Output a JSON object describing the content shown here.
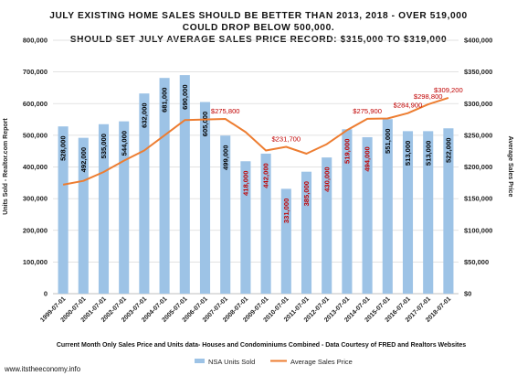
{
  "chart_data": {
    "type": "bar",
    "title_lines": [
      "JULY EXISTING HOME SALES SHOULD BE BETTER THAN 2013, 2018 - OVER 519,000",
      "COULD DROP BELOW 500,000.",
      "SHOULD SET JULY AVERAGE SALES PRICE RECORD: $315,000 TO $319,000"
    ],
    "categories": [
      "1999-07-01",
      "2000-07-01",
      "2001-07-01",
      "2002-07-01",
      "2003-07-01",
      "2004-07-01",
      "2005-07-01",
      "2006-07-01",
      "2007-07-01",
      "2008-07-01",
      "2009-07-01",
      "2010-07-01",
      "2011-07-01",
      "2012-07-01",
      "2013-07-01",
      "2014-07-01",
      "2015-07-01",
      "2016-07-01",
      "2017-07-01",
      "2018-07-01"
    ],
    "series": [
      {
        "name": "NSA Units Sold",
        "axis": "left",
        "color": "#9dc3e6",
        "values": [
          528000,
          492000,
          535000,
          544000,
          632000,
          681000,
          690000,
          605000,
          499000,
          418000,
          442000,
          331000,
          385000,
          430000,
          519000,
          494000,
          551000,
          513000,
          513000,
          522000
        ],
        "labels": [
          "528,000",
          "492,000",
          "535,000",
          "544,000",
          "632,000",
          "681,000",
          "690,000",
          "605,000",
          "499,000",
          "418,000",
          "442,000",
          "331,000",
          "385,000",
          "430,000",
          "519,000",
          "494,000",
          "551,000",
          "513,000",
          "513,000",
          "522,000"
        ],
        "label_colors": [
          "#000000",
          "#000000",
          "#000000",
          "#000000",
          "#000000",
          "#000000",
          "#000000",
          "#000000",
          "#000000",
          "#c00000",
          "#c00000",
          "#c00000",
          "#c00000",
          "#c00000",
          "#c00000",
          "#c00000",
          "#000000",
          "#000000",
          "#000000",
          "#000000"
        ]
      },
      {
        "name": "Average Sales Price",
        "axis": "right",
        "color": "#ed7d31",
        "values": [
          172000,
          178000,
          192000,
          210000,
          226000,
          250000,
          274000,
          275000,
          275800,
          255000,
          226000,
          231700,
          221000,
          236000,
          258000,
          275900,
          276500,
          284900,
          298800,
          309200
        ]
      }
    ],
    "price_annotations": [
      {
        "index": 8,
        "text": "$275,800"
      },
      {
        "index": 11,
        "text": "$231,700"
      },
      {
        "index": 15,
        "text": "$275,900"
      },
      {
        "index": 17,
        "text": "$284,900"
      },
      {
        "index": 18,
        "text": "$298,800"
      },
      {
        "index": 19,
        "text": "$309,200"
      }
    ],
    "left_axis": {
      "label": "Units Sold - Realtor.com Report",
      "min": 0,
      "max": 800000,
      "step": 100000,
      "ticks": [
        "0",
        "100,000",
        "200,000",
        "300,000",
        "400,000",
        "500,000",
        "600,000",
        "700,000",
        "800,000"
      ]
    },
    "right_axis": {
      "label": "Average Sales Price",
      "min": 0,
      "max": 400000,
      "step": 50000,
      "ticks": [
        "$0",
        "$50,000",
        "$100,000",
        "$150,000",
        "$200,000",
        "$250,000",
        "$300,000",
        "$350,000",
        "$400,000"
      ]
    },
    "grid": true,
    "legend_position": "bottom",
    "footer_note": "Current Month Only Sales Price and Units data- Houses and Condominiums Combined - Data Courtesy of FRED and Realtors Websites",
    "website": "www.itstheeconomy.info"
  }
}
